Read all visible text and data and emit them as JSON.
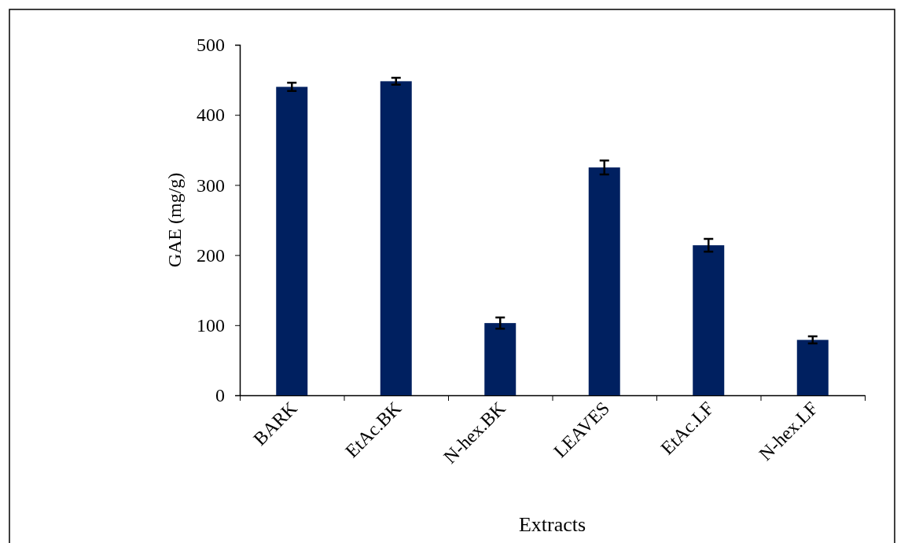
{
  "chart_data": {
    "type": "bar",
    "xlabel": "Extracts",
    "ylabel": "GAE (mg/g)",
    "categories": [
      "BARK",
      "EtAc.BK",
      "N-hex.BK",
      "LEAVES",
      "EtAc.LF",
      "N-hex.LF"
    ],
    "values": [
      440,
      448,
      103,
      325,
      214,
      79
    ],
    "errors": [
      6,
      5,
      8,
      10,
      9,
      5
    ],
    "color": "#002060",
    "ylim": [
      0,
      500
    ],
    "yticks": [
      0,
      100,
      200,
      300,
      400,
      500
    ]
  }
}
